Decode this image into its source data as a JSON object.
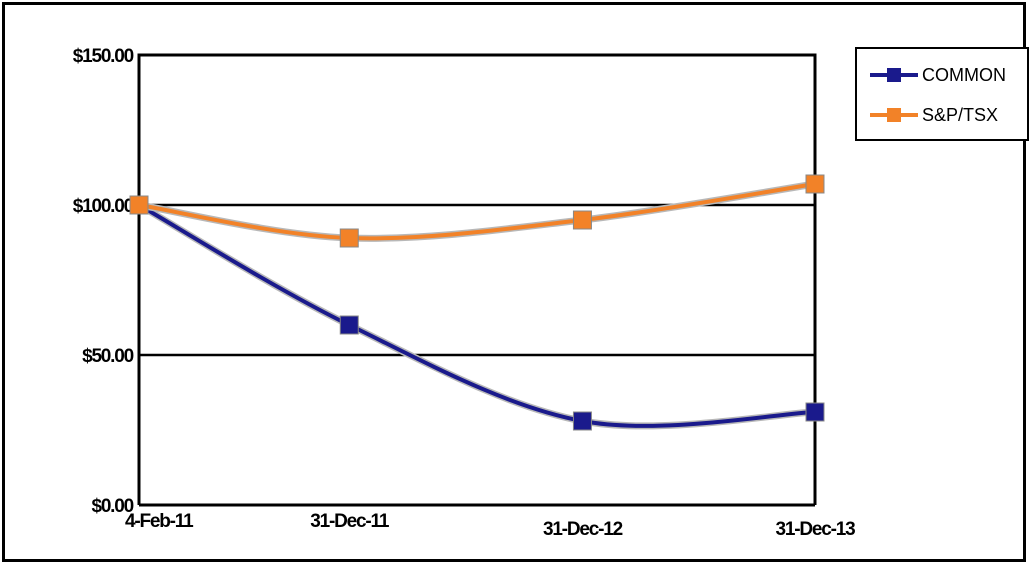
{
  "chart_data": {
    "type": "line",
    "categories": [
      "4-Feb-11",
      "31-Dec-11",
      "31-Dec-12",
      "31-Dec-13"
    ],
    "x": [
      "2011-02-04",
      "2011-12-31",
      "2012-12-31",
      "2013-12-31"
    ],
    "series": [
      {
        "name": "COMMON",
        "color": "#1a1a8c",
        "values": [
          100.0,
          60.0,
          28.0,
          31.0
        ]
      },
      {
        "name": "S&P/TSX",
        "color": "#f28228",
        "values": [
          100.0,
          89.0,
          95.0,
          107.0
        ]
      }
    ],
    "y_ticks": [
      0,
      50,
      100,
      150
    ],
    "y_tick_labels": [
      "$0.00",
      "$50.00",
      "$100.00",
      "$150.00"
    ],
    "ylim": [
      0,
      150
    ],
    "grid": "horizontal",
    "legend_position": "top-right"
  }
}
